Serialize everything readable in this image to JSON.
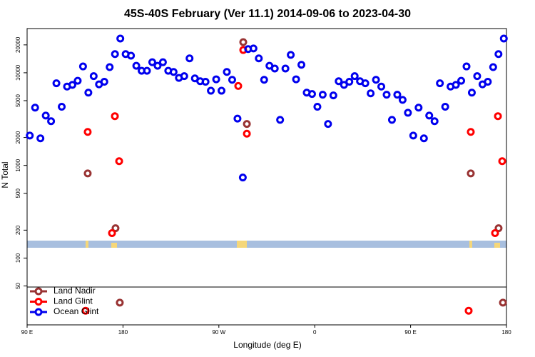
{
  "chart_data": {
    "type": "scatter",
    "title": "45S-40S February (Ver 11.1)   2014-09-06 to 2023-04-30",
    "x_label": "Longitude (deg E)",
    "y_label": "N Total",
    "ylog": true,
    "xlim": [
      90,
      540
    ],
    "ylim": [
      19,
      30000
    ],
    "xticks": [
      {
        "value": 90,
        "label": "90 E"
      },
      180,
      {
        "value": 270,
        "label": "90 W"
      },
      {
        "value": 360,
        "label": "0"
      },
      {
        "value": 450,
        "label": "90 E"
      },
      {
        "value": 540,
        "label": "180"
      }
    ],
    "yticks": [
      50,
      100,
      200,
      500,
      1000,
      2000,
      5000,
      10000,
      20000
    ],
    "legend": "bottom-left",
    "series": [
      {
        "name": "Land Nadir",
        "color": "#993333",
        "x": [
          146.9,
          173,
          177,
          292.9,
          296.3,
          506.5,
          532.6,
          536.7
        ],
        "values": [
          820,
          210,
          33,
          21400,
          2800,
          820,
          210,
          33
        ]
      },
      {
        "name": "Land Glint",
        "color": "#ff0000",
        "x": [
          144.9,
          146.9,
          169.7,
          172.4,
          176.4,
          288.2,
          292.9,
          296.3,
          504.5,
          506.5,
          529.3,
          532,
          536
        ],
        "values": [
          27,
          2300,
          186,
          3400,
          1110,
          7200,
          17600,
          2200,
          27,
          2300,
          186,
          3400,
          1110
        ]
      },
      {
        "name": "Ocean Glint",
        "color": "#0000ee",
        "x": [
          92.5,
          97.5,
          102.5,
          107.5,
          112.5,
          117.5,
          122.5,
          127.5,
          132.5,
          137.5,
          142.5,
          147.5,
          152.5,
          157.5,
          162.5,
          167.5,
          172.5,
          177.5,
          182.5,
          187.5,
          192.5,
          197.5,
          202.5,
          207.5,
          212.5,
          217.5,
          222.5,
          227.5,
          232.5,
          237.5,
          242.5,
          247.5,
          252.5,
          257.5,
          262.5,
          267.5,
          272.5,
          277.5,
          282.5,
          287.5,
          292.5,
          297.5,
          302.5,
          307.5,
          312.5,
          317.5,
          322.5,
          327.5,
          332.5,
          337.5,
          342.5,
          347.5,
          352.5,
          357.5,
          362.5,
          367.5,
          372.5,
          377.5,
          382.5,
          387.5,
          392.5,
          397.5,
          402.5,
          407.5,
          412.5,
          417.5,
          422.5,
          427.5,
          432.5,
          437.5,
          442.5,
          447.5,
          452.5,
          457.5,
          462.5,
          467.5,
          472.5,
          477.5,
          482.5,
          487.5,
          492.5,
          497.5,
          502.5,
          507.5,
          512.5,
          517.5,
          522.5,
          527.5,
          532.5,
          537.5
        ],
        "values": [
          2100,
          4200,
          1960,
          3450,
          3000,
          7700,
          4300,
          7100,
          7400,
          8200,
          11700,
          6100,
          9200,
          7500,
          8000,
          11500,
          15900,
          23400,
          15900,
          15300,
          11900,
          10500,
          10500,
          13000,
          11900,
          13000,
          10500,
          10200,
          8800,
          9200,
          14300,
          8700,
          8100,
          8000,
          6400,
          8500,
          6400,
          10200,
          8400,
          3200,
          740,
          18000,
          18300,
          14300,
          8400,
          11900,
          11100,
          3100,
          11100,
          15600,
          8500,
          12200,
          6100,
          5900,
          4300,
          5800,
          2800,
          5700,
          8100,
          7400,
          8000,
          9200,
          8100,
          7700,
          6000,
          8400,
          7100,
          5800,
          3100,
          5800,
          5100,
          3700,
          2100,
          4200,
          1960,
          3450,
          3000,
          7700,
          4300,
          7100,
          7400,
          8200,
          11700,
          6100,
          9200,
          7500,
          8000,
          11500,
          15900,
          23400
        ]
      }
    ]
  }
}
